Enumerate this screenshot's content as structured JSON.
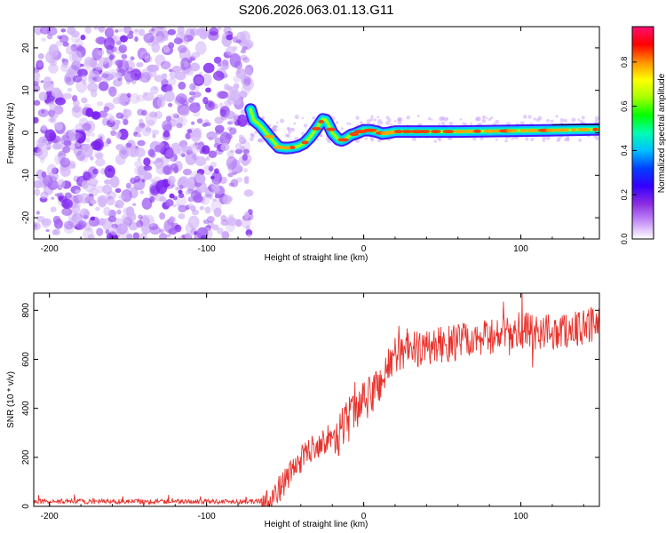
{
  "title": "S206.2026.063.01.13.G11",
  "chart_data": [
    {
      "type": "heatmap",
      "title": "S206.2026.063.01.13.G11",
      "xlabel": "Height of straight line (km)",
      "ylabel": "Frequency (Hz)",
      "xlim": [
        -210,
        150
      ],
      "ylim": [
        -25,
        25
      ],
      "xticks": [
        -200,
        -100,
        0,
        100
      ],
      "yticks": [
        -20,
        -10,
        0,
        10,
        20
      ],
      "noise_region_xlim": [
        -210,
        -72
      ],
      "ridge": {
        "name": "peak frequency",
        "x": [
          -72,
          -70,
          -66,
          -62,
          -58,
          -54,
          -50,
          -46,
          -42,
          -38,
          -34,
          -30,
          -26,
          -24,
          -22,
          -20,
          -18,
          -16,
          -14,
          -12,
          -10,
          -8,
          -6,
          -4,
          -2,
          0,
          4,
          8,
          12,
          16,
          20,
          30,
          40,
          60,
          80,
          100,
          120,
          150
        ],
        "y": [
          5.5,
          3,
          1.8,
          0,
          -1.8,
          -3.4,
          -3.6,
          -3.5,
          -3.2,
          -2.5,
          -1,
          1,
          3.2,
          3,
          1.6,
          0,
          -0.8,
          -1.6,
          -1.8,
          -1.5,
          -1,
          -0.5,
          -0.3,
          0,
          0.3,
          0.6,
          0.6,
          0.3,
          -0.2,
          0,
          0.3,
          0.3,
          0.3,
          0.3,
          0.4,
          0.5,
          0.6,
          0.8
        ]
      }
    },
    {
      "type": "line",
      "xlabel": "Height of straight line (km)",
      "ylabel": "SNR (10 * v/v)",
      "xlim": [
        -210,
        150
      ],
      "ylim": [
        0,
        870
      ],
      "xticks": [
        -200,
        -100,
        0,
        100
      ],
      "yticks": [
        0,
        200,
        400,
        600,
        800
      ],
      "series": [
        {
          "name": "SNR",
          "color": "#e8322c",
          "trend_x": [
            -210,
            -70,
            -62,
            -55,
            -45,
            -35,
            -25,
            -15,
            -10,
            -5,
            0,
            10,
            20,
            30,
            50,
            80,
            100,
            120,
            150
          ],
          "trend_y": [
            20,
            20,
            25,
            60,
            150,
            230,
            270,
            300,
            350,
            380,
            420,
            500,
            620,
            640,
            660,
            690,
            720,
            710,
            740
          ]
        }
      ]
    }
  ],
  "colorbar": {
    "label": "Normalized spectral amplitude",
    "ticks": [
      "0.0",
      "0.2",
      "0.4",
      "0.6",
      "0.8"
    ],
    "range": [
      0,
      0.96
    ],
    "colors": [
      "#ffffff",
      "#c48ef8",
      "#8a2be2",
      "#3300ff",
      "#0040ff",
      "#00c0ff",
      "#00ffb0",
      "#00ff00",
      "#a8ff00",
      "#ffff00",
      "#ff9000",
      "#ff0000",
      "#ff1070"
    ]
  }
}
